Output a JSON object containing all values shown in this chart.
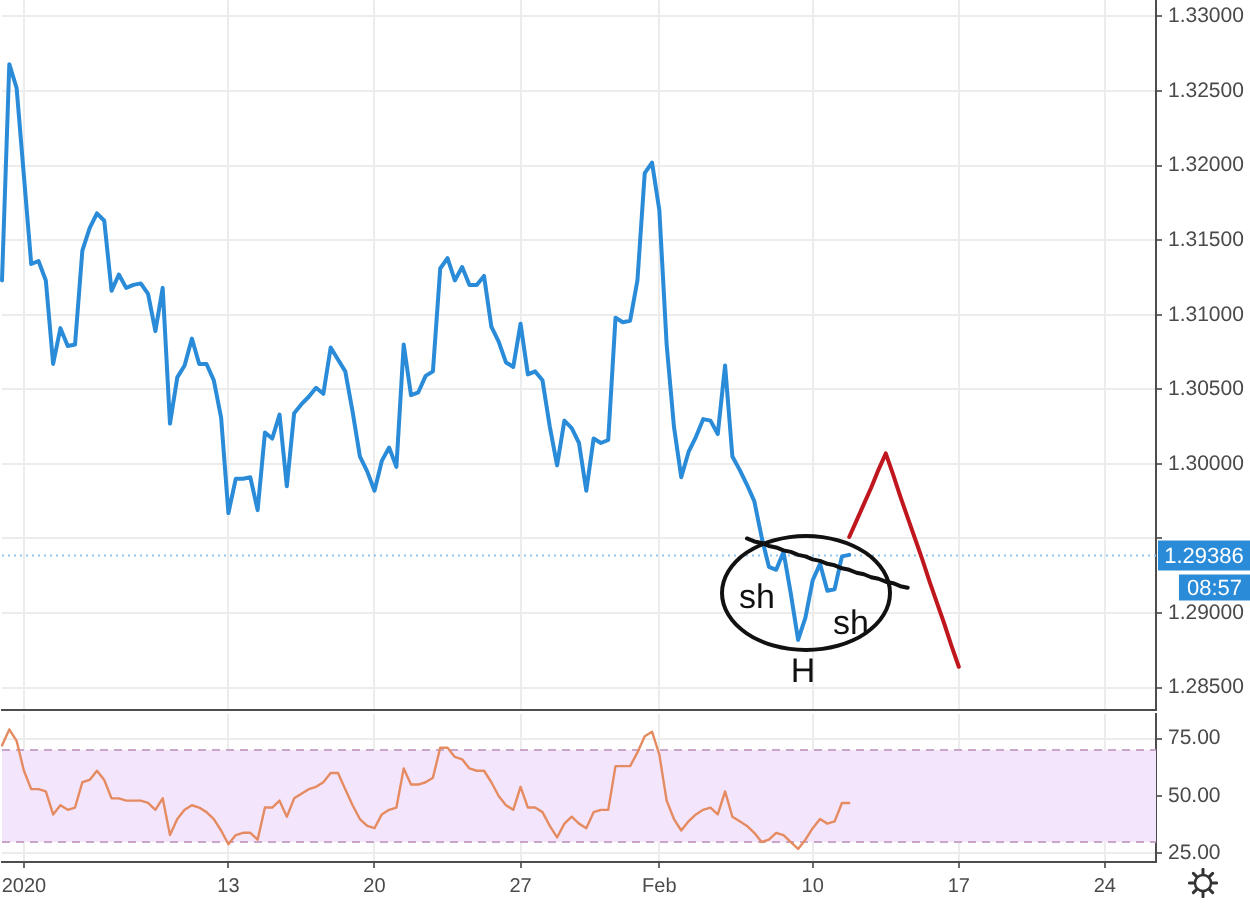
{
  "chart_data": [
    {
      "type": "line",
      "categories": [
        null,
        null,
        null,
        null,
        null,
        null,
        null,
        null,
        null,
        null,
        null,
        null,
        null,
        null,
        null,
        null,
        null,
        null,
        null,
        null,
        null,
        null,
        null,
        null,
        null,
        null,
        null,
        null,
        null,
        null,
        null,
        null,
        null,
        null,
        null,
        null,
        null,
        null,
        null,
        null,
        null,
        null,
        null,
        null,
        null,
        null,
        null,
        null,
        null,
        null,
        null,
        null,
        null,
        null,
        null,
        null,
        null,
        null,
        null,
        null,
        null,
        null,
        null,
        null,
        null,
        null,
        null,
        null,
        null,
        null,
        null,
        null,
        null,
        null,
        null,
        null,
        null,
        null,
        null,
        null,
        null,
        null,
        null,
        null,
        null,
        null,
        null,
        null,
        null,
        null,
        null,
        null,
        null,
        null,
        null,
        null,
        null,
        null,
        null,
        null,
        null,
        null,
        null,
        null,
        null,
        null,
        null,
        null,
        null,
        null,
        null,
        null,
        null,
        null,
        null,
        null,
        null,
        null,
        null,
        null,
        null,
        null,
        null,
        null,
        null,
        null,
        null,
        null,
        null,
        null,
        null,
        null,
        null,
        null,
        null,
        null,
        null,
        null,
        null,
        null,
        null,
        null,
        null,
        null,
        null,
        null,
        null,
        null,
        null,
        null,
        null,
        null,
        null,
        null,
        null,
        null,
        null,
        null,
        null
      ],
      "series": [
        {
          "color": "#2a8bd8",
          "values": [
            1.3123,
            1.3268,
            1.3252,
            1.3193,
            1.3134,
            1.3136,
            1.3123,
            1.3067,
            1.3091,
            1.3079,
            1.308,
            1.3143,
            1.3158,
            1.3168,
            1.3163,
            1.3116,
            1.3127,
            1.3118,
            1.312,
            1.3121,
            1.3114,
            1.3089,
            1.3118,
            1.3027,
            1.3058,
            1.3066,
            1.3084,
            1.3067,
            1.3067,
            1.3056,
            1.3031,
            1.2967,
            1.299,
            1.299,
            1.2991,
            1.2969,
            1.3021,
            1.3017,
            1.3033,
            1.2985,
            1.3034,
            1.304,
            1.3045,
            1.3051,
            1.3047,
            1.3078,
            1.307,
            1.3062,
            1.3035,
            1.3005,
            1.2995,
            1.2982,
            1.3002,
            1.3011,
            1.2998,
            1.308,
            1.3046,
            1.3048,
            1.3059,
            1.3062,
            1.3131,
            1.3138,
            1.3123,
            1.3132,
            1.312,
            1.312,
            1.3126,
            1.3092,
            1.3082,
            1.3068,
            1.3065,
            1.3094,
            1.306,
            1.3062,
            1.3056,
            1.3025,
            1.2999,
            1.3029,
            1.3024,
            1.3014,
            1.2982,
            1.3017,
            1.3014,
            1.3016,
            1.3098,
            1.3095,
            1.3096,
            1.3123,
            1.3195,
            1.3202,
            1.317,
            1.308,
            1.3025,
            1.2991,
            1.3008,
            1.3018,
            1.303,
            1.3029,
            1.302,
            1.3066,
            1.3005,
            1.2996,
            1.2986,
            1.2975,
            1.2951,
            1.2931,
            1.2929,
            1.2941,
            1.2913,
            1.2882,
            1.2897,
            1.2922,
            1.2933,
            1.2915,
            1.2916,
            1.2938,
            1.2939,
            null,
            null,
            null,
            null,
            null,
            null,
            null,
            null,
            null,
            null,
            null,
            null,
            null,
            null,
            null,
            null,
            null,
            null,
            null,
            null,
            null,
            null,
            null,
            null,
            null,
            null,
            null,
            null,
            null,
            null,
            null,
            null,
            null,
            null,
            null,
            null,
            null,
            null,
            null,
            null,
            null,
            null
          ]
        },
        {
          "type": "line",
          "color": "#c0161e",
          "values": [
            null,
            null,
            null,
            null,
            null,
            null,
            null,
            null,
            null,
            null,
            null,
            null,
            null,
            null,
            null,
            null,
            null,
            null,
            null,
            null,
            null,
            null,
            null,
            null,
            null,
            null,
            null,
            null,
            null,
            null,
            null,
            null,
            null,
            null,
            null,
            null,
            null,
            null,
            null,
            null,
            null,
            null,
            null,
            null,
            null,
            null,
            null,
            null,
            null,
            null,
            null,
            null,
            null,
            null,
            null,
            null,
            null,
            null,
            null,
            null,
            null,
            null,
            null,
            null,
            null,
            null,
            null,
            null,
            null,
            null,
            null,
            null,
            null,
            null,
            null,
            null,
            null,
            null,
            null,
            null,
            null,
            null,
            null,
            null,
            null,
            null,
            null,
            null,
            null,
            null,
            null,
            null,
            null,
            null,
            null,
            null,
            null,
            null,
            null,
            null,
            null,
            null,
            null,
            null,
            null,
            null,
            null,
            null,
            null,
            null,
            null,
            null,
            null,
            null,
            null,
            null,
            1.2951,
            1.2962,
            1.2973,
            1.2984,
            1.2996,
            1.3007,
            1.2993,
            1.2978,
            1.2964,
            1.295,
            1.2936,
            1.2921,
            1.2907,
            1.2893,
            1.2878,
            1.2864,
            null,
            null,
            null,
            null,
            null,
            null,
            null,
            null,
            null,
            null,
            null,
            null,
            null,
            null,
            null,
            null,
            null,
            null,
            null,
            null,
            null,
            null,
            null,
            null,
            null,
            null,
            null
          ]
        },
        {
          "type": "line",
          "color": "#111111",
          "values": [
            null,
            null,
            null,
            null,
            null,
            null,
            null,
            null,
            null,
            null,
            null,
            null,
            null,
            null,
            null,
            null,
            null,
            null,
            null,
            null,
            null,
            null,
            null,
            null,
            null,
            null,
            null,
            null,
            null,
            null,
            null,
            null,
            null,
            null,
            null,
            null,
            null,
            null,
            null,
            null,
            null,
            null,
            null,
            null,
            null,
            null,
            null,
            null,
            null,
            null,
            null,
            null,
            null,
            null,
            null,
            null,
            null,
            null,
            null,
            null,
            null,
            null,
            null,
            null,
            null,
            null,
            null,
            null,
            null,
            null,
            null,
            null,
            null,
            null,
            null,
            null,
            null,
            null,
            null,
            null,
            null,
            null,
            null,
            null,
            null,
            null,
            null,
            null,
            null,
            null,
            null,
            null,
            null,
            null,
            null,
            null,
            null,
            null,
            null,
            null,
            null,
            null,
            1.295,
            1.2948,
            1.2947,
            1.2945,
            1.2944,
            1.2942,
            1.2941,
            1.2939,
            1.2938,
            1.2936,
            1.2935,
            1.2933,
            1.2932,
            1.293,
            1.2929,
            1.2927,
            1.2926,
            1.2924,
            1.2923,
            1.2921,
            1.292,
            1.2918,
            1.2917,
            null,
            null,
            null,
            null,
            null,
            null,
            null,
            null,
            null,
            null,
            null,
            null,
            null,
            null,
            null,
            null,
            null,
            null,
            null,
            null,
            null,
            null,
            null,
            null,
            null,
            null,
            null,
            null,
            null,
            null,
            null,
            null,
            null,
            null
          ]
        }
      ],
      "ylim": [
        1.2835,
        1.3311
      ],
      "yticks": [
        {
          "value": 1.285,
          "label": "1.28500"
        },
        {
          "value": 1.29,
          "label": "1.29000"
        },
        {
          "value": 1.295,
          "label": null
        },
        {
          "value": 1.3,
          "label": "1.30000"
        },
        {
          "value": 1.305,
          "label": "1.30500"
        },
        {
          "value": 1.31,
          "label": "1.31000"
        },
        {
          "value": 1.315,
          "label": "1.31500"
        },
        {
          "value": 1.32,
          "label": "1.32000"
        },
        {
          "value": 1.325,
          "label": "1.32500"
        },
        {
          "value": 1.33,
          "label": "1.33000"
        }
      ],
      "tick_labels": "y",
      "grid": true,
      "marker": "none",
      "ref_lines": [
        {
          "axis": "y",
          "value": 1.29386,
          "label": "1.29386",
          "color": "#94c5ec",
          "line_style": "dotted"
        }
      ],
      "annotations": [
        "sh",
        "sh",
        "H",
        "08:57"
      ]
    },
    {
      "type": "line",
      "categories": [
        null,
        null,
        null,
        "2020",
        null,
        null,
        null,
        null,
        null,
        null,
        null,
        null,
        null,
        null,
        null,
        null,
        null,
        null,
        null,
        null,
        null,
        null,
        null,
        null,
        null,
        null,
        null,
        null,
        null,
        null,
        null,
        "13",
        null,
        null,
        null,
        null,
        null,
        null,
        null,
        null,
        null,
        null,
        null,
        null,
        null,
        null,
        null,
        null,
        null,
        null,
        null,
        "20",
        null,
        null,
        null,
        null,
        null,
        null,
        null,
        null,
        null,
        null,
        null,
        null,
        null,
        null,
        null,
        null,
        null,
        null,
        null,
        "27",
        null,
        null,
        null,
        null,
        null,
        null,
        null,
        null,
        null,
        null,
        null,
        null,
        null,
        null,
        null,
        null,
        null,
        null,
        "Feb",
        null,
        null,
        null,
        null,
        null,
        null,
        null,
        null,
        null,
        null,
        null,
        null,
        null,
        null,
        null,
        null,
        null,
        null,
        null,
        null,
        "10",
        null,
        null,
        null,
        null,
        null,
        null,
        null,
        null,
        null,
        null,
        null,
        null,
        null,
        null,
        null,
        null,
        null,
        null,
        null,
        "17",
        null,
        null,
        null,
        null,
        null,
        null,
        null,
        null,
        null,
        null,
        null,
        null,
        null,
        null,
        null,
        null,
        null,
        null,
        null,
        "24",
        null,
        null,
        null,
        null,
        null,
        null,
        null
      ],
      "series": [
        {
          "color": "#e58b61",
          "values": [
            72,
            79,
            74,
            61,
            53,
            53,
            52,
            42,
            46,
            44,
            45,
            56,
            57,
            61,
            57,
            49,
            49,
            48,
            48,
            48,
            47,
            44,
            49,
            33,
            40,
            44,
            46,
            45,
            43,
            40,
            35,
            29,
            33,
            34,
            34,
            31,
            45,
            45,
            48,
            41,
            49,
            51,
            53,
            54,
            56,
            60,
            60,
            53,
            46,
            40,
            37,
            36,
            42,
            44,
            45,
            62,
            55,
            55,
            56,
            58,
            71,
            71,
            67,
            66,
            62,
            61,
            61,
            56,
            50,
            46,
            44,
            54,
            45,
            45,
            43,
            37,
            32,
            38,
            41,
            38,
            36,
            43,
            44,
            44,
            63,
            63,
            63,
            69,
            76,
            78,
            68,
            48,
            40,
            35,
            39,
            42,
            44,
            45,
            42,
            52,
            41,
            39,
            37,
            34,
            30,
            31,
            34,
            33,
            30,
            27,
            31,
            36,
            40,
            38,
            39,
            47,
            47,
            null,
            null,
            null,
            null,
            null,
            null,
            null,
            null,
            null,
            null,
            null,
            null,
            null,
            null,
            null,
            null,
            null,
            null,
            null,
            null,
            null,
            null,
            null,
            null,
            null,
            null,
            null,
            null,
            null,
            null,
            null,
            null,
            null,
            null,
            null,
            null,
            null,
            null,
            null,
            null,
            null,
            null
          ]
        }
      ],
      "ylim": [
        21.3,
        85.7
      ],
      "yticks": [
        {
          "value": 25,
          "label": "25.00"
        },
        {
          "value": 50,
          "label": "50.00"
        },
        {
          "value": 75,
          "label": "75.00"
        }
      ],
      "grid": true,
      "marker": "none",
      "bands": [
        {
          "axis": "y",
          "from": 30,
          "to": 70,
          "color": "#f3e5fc"
        }
      ],
      "ref_lines": [
        {
          "axis": "y",
          "value": 70,
          "color": "#c9a6c9",
          "line_style": "dashed"
        },
        {
          "axis": "y",
          "value": 30,
          "color": "#c9a6c9",
          "line_style": "dashed"
        }
      ]
    }
  ]
}
